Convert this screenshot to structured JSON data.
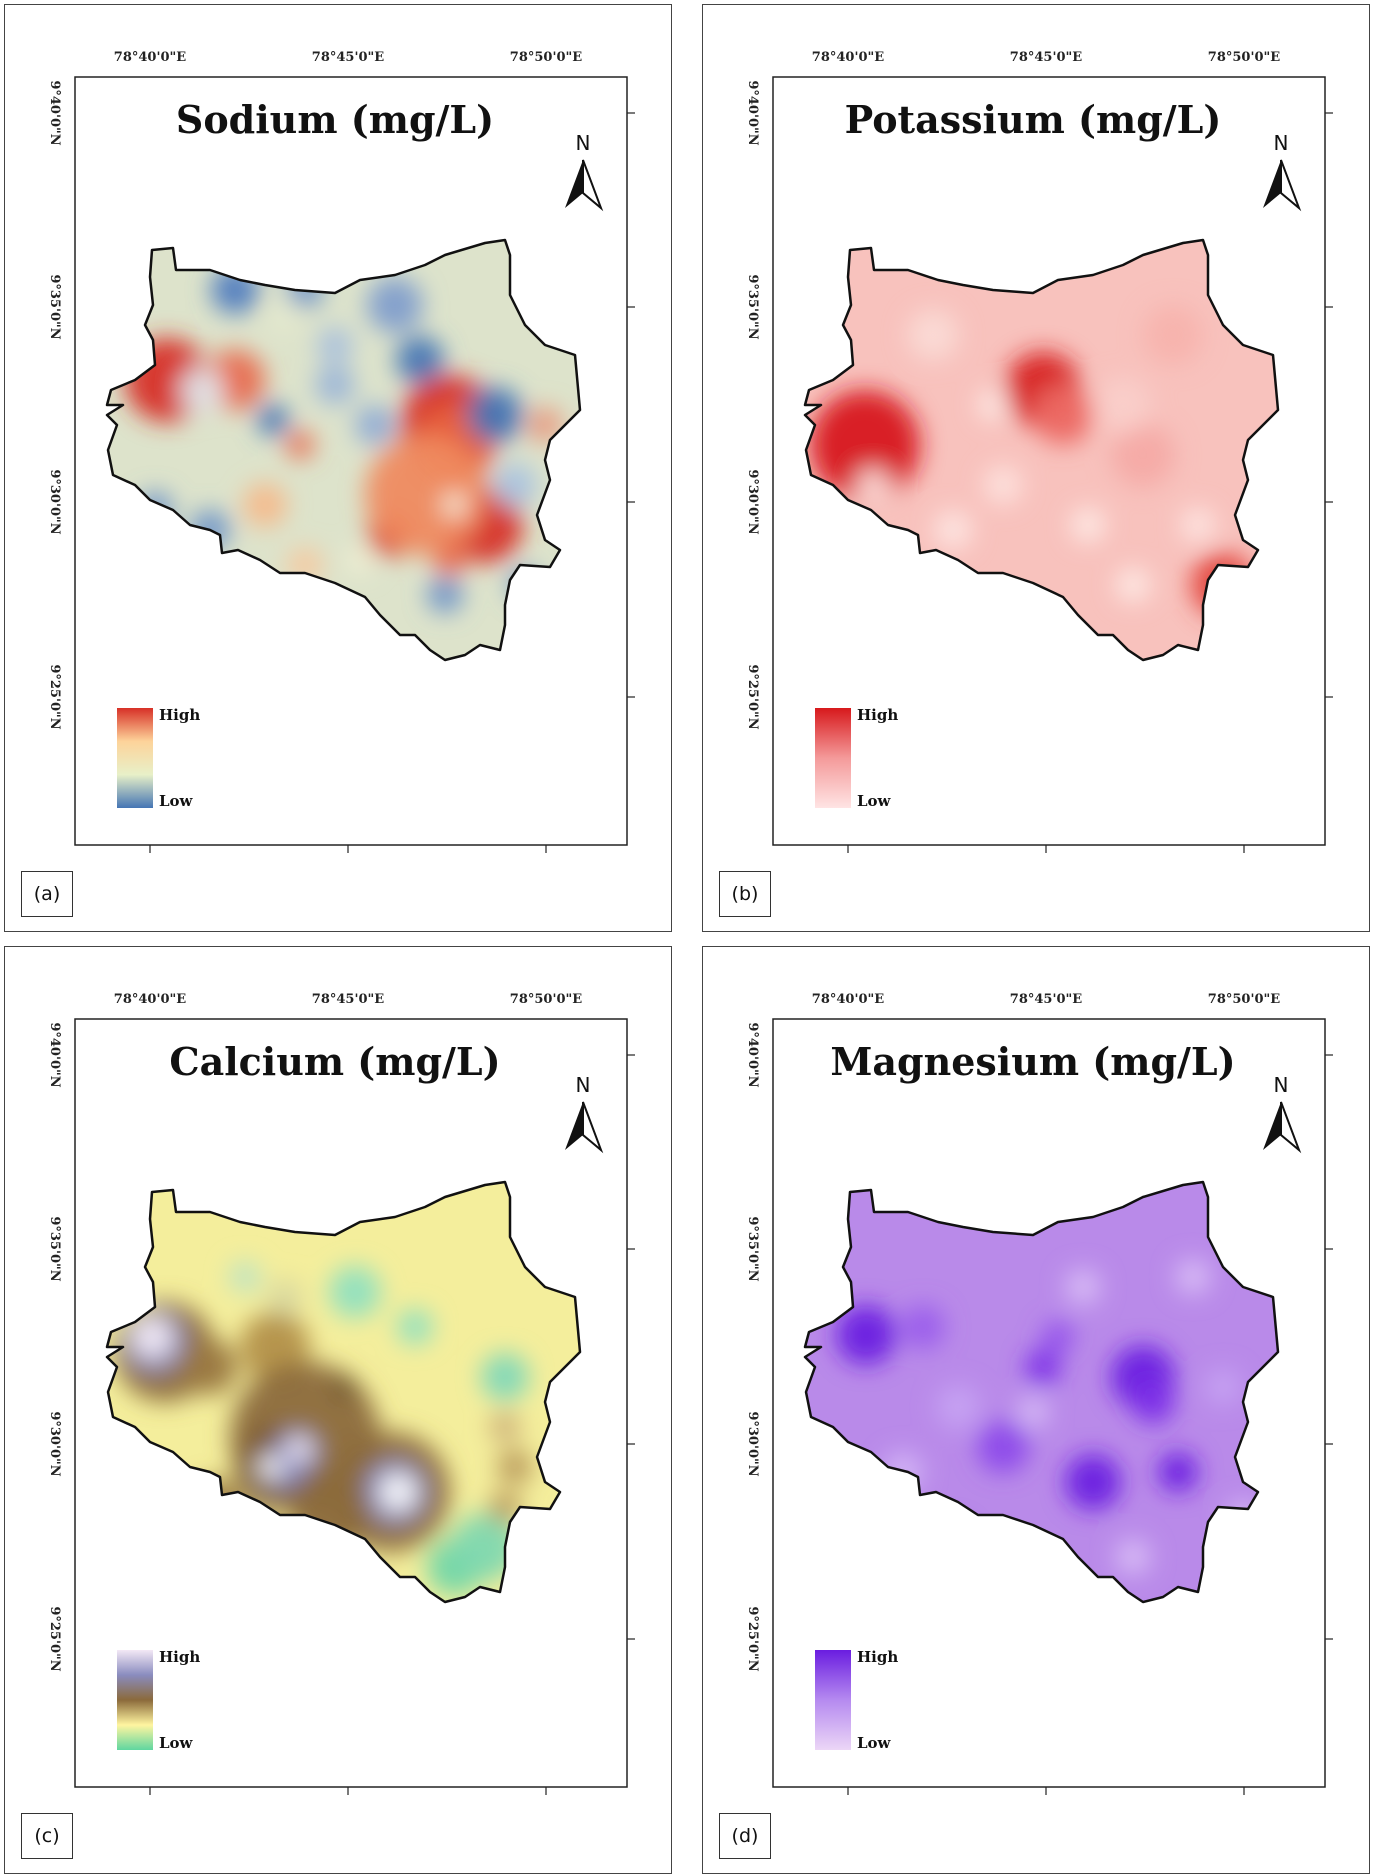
{
  "panels": [
    {
      "id": "sodium",
      "label": "(a)",
      "title": "Sodium (mg/L)",
      "legend": {
        "high": "High",
        "low": "Low",
        "ramp": [
          "#d73027",
          "#fdd39a",
          "#e8f0c8",
          "#4575b4"
        ]
      },
      "base_color": "#dde3cb",
      "accent_colors": {
        "high": "#d73027",
        "low": "#4575b4"
      }
    },
    {
      "id": "potassium",
      "label": "(b)",
      "title": "Potassium (mg/L)",
      "legend": {
        "high": "High",
        "low": "Low",
        "ramp": [
          "#d7191c",
          "#f49a9a",
          "#ffe4e4"
        ]
      },
      "base_color": "#f8c2bd",
      "accent_colors": {
        "high": "#d7191c",
        "low": "#ffe4e4"
      }
    },
    {
      "id": "calcium",
      "label": "(c)",
      "title": "Calcium (mg/L)",
      "legend": {
        "high": "High",
        "low": "Low",
        "ramp": [
          "#f3e8f5",
          "#8a8cbf",
          "#8b6a3b",
          "#fff5a0",
          "#5fd6a0"
        ]
      },
      "base_color": "#f4ee9c",
      "accent_colors": {
        "high": "#8b6a3b",
        "low": "#5fd6a0"
      }
    },
    {
      "id": "magnesium",
      "label": "(d)",
      "title": "Magnesium (mg/L)",
      "legend": {
        "high": "High",
        "low": "Low",
        "ramp": [
          "#6a1de0",
          "#b58af0",
          "#ecd6f6"
        ]
      },
      "base_color": "#b98ae9",
      "accent_colors": {
        "high": "#6a1de0",
        "low": "#ecd6f6"
      }
    }
  ],
  "axes": {
    "x_ticks": [
      "78°40'0\"E",
      "78°45'0\"E",
      "78°50'0\"E"
    ],
    "y_ticks": [
      "9°40'0\"N",
      "9°35'0\"N",
      "9°30'0\"N",
      "9°25'0\"N"
    ]
  },
  "north_label": "N",
  "icons": {
    "north": "north-arrow-icon"
  }
}
